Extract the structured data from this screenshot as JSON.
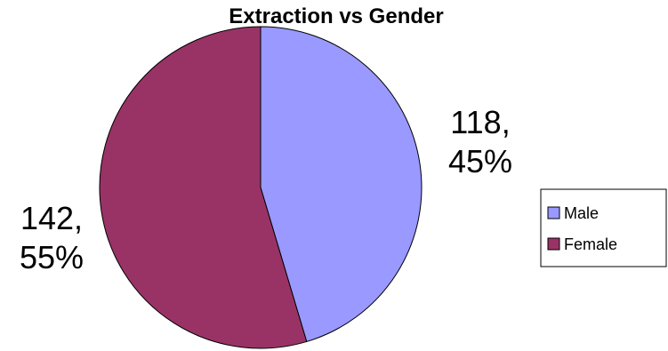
{
  "chart_data": {
    "type": "pie",
    "title": "Extraction vs Gender",
    "categories": [
      "Male",
      "Female"
    ],
    "values": [
      118,
      142
    ],
    "value_labels": [
      [
        "118,",
        "45%"
      ],
      [
        "142,",
        "55%"
      ]
    ],
    "colors": [
      "#9999ff",
      "#993366"
    ],
    "legend": "right"
  }
}
